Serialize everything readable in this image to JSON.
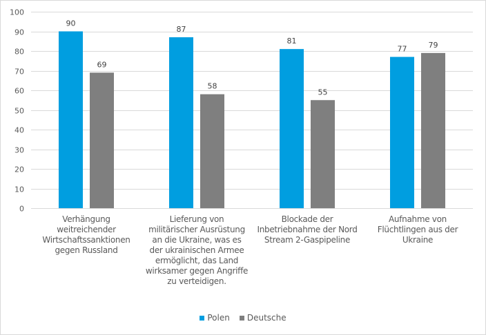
{
  "chart_data": {
    "type": "bar",
    "title": "",
    "xlabel": "",
    "ylabel": "",
    "ylim": [
      0,
      100
    ],
    "yticks": [
      0,
      10,
      20,
      30,
      40,
      50,
      60,
      70,
      80,
      90,
      100
    ],
    "grid": true,
    "legend_position": "bottom",
    "categories": [
      "Verhängung weitreichender Wirtschaftssanktionen gegen Russland",
      "Lieferung von militärischer Ausrüstung an die Ukraine, was es der ukrainischen Armee ermöglicht, das Land wirksamer gegen Angriffe zu verteidigen.",
      "Blockade der Inbetriebnahme der Nord Stream 2-Gaspipeline",
      "Aufnahme von Flüchtlingen aus der Ukraine"
    ],
    "series": [
      {
        "name": "Polen",
        "color": "#009ee0",
        "values": [
          90,
          87,
          81,
          77
        ]
      },
      {
        "name": "Deutsche",
        "color": "#7f7f7f",
        "values": [
          69,
          58,
          55,
          79
        ]
      }
    ]
  }
}
